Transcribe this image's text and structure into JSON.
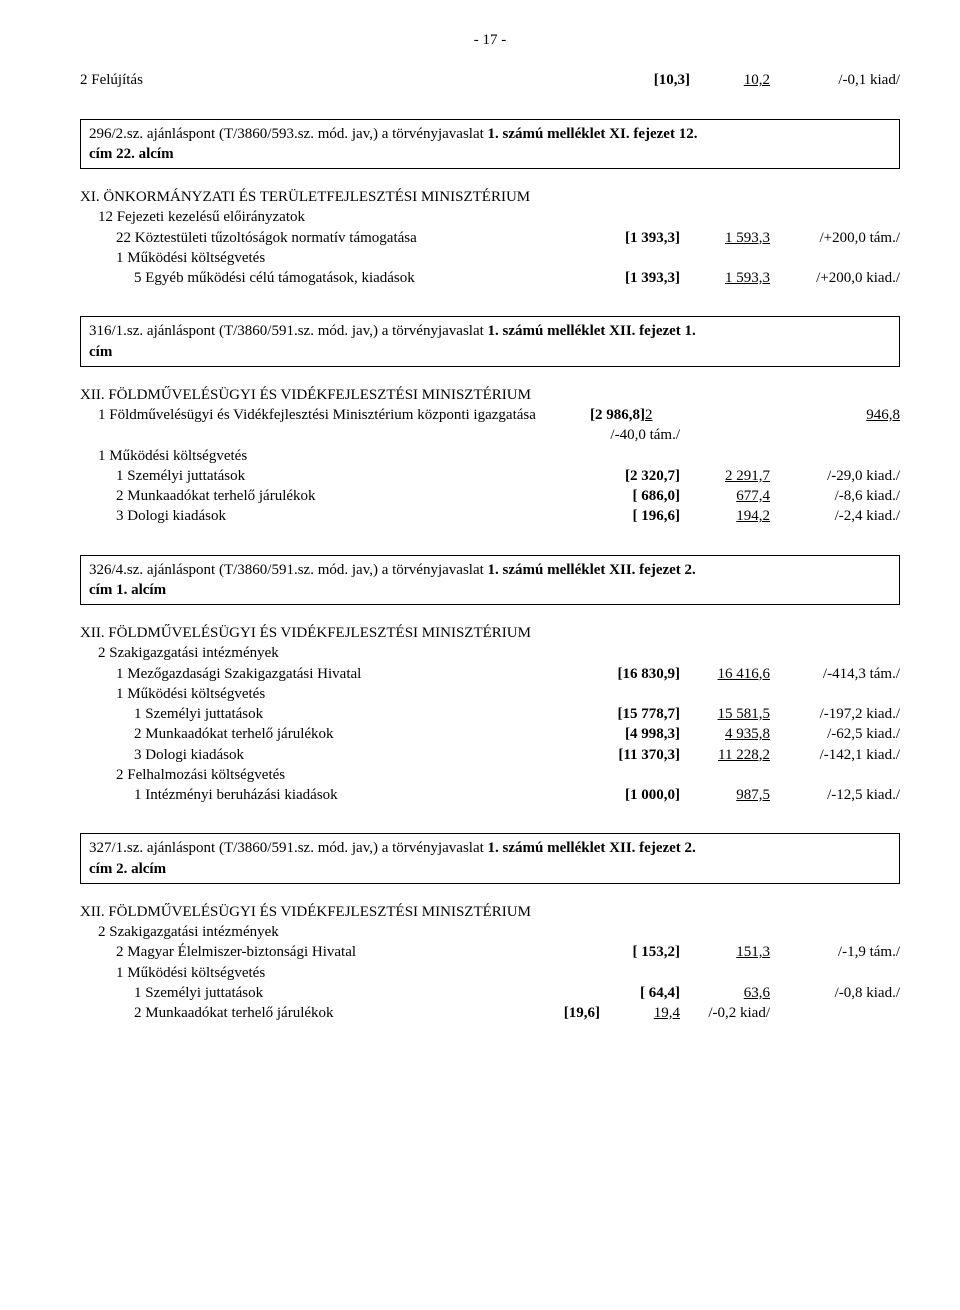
{
  "page_number": "- 17 -",
  "top_row": {
    "label": "2  Felújítás",
    "c1": "[10,3]",
    "c2": "10,2",
    "c3": "/-0,1 kiad/"
  },
  "box1": {
    "line1_plain": "296/2.sz. ajánláspont (T/3860/593.sz. mód. jav,) a törvényjavaslat ",
    "line1_bold": "1. számú melléklet XI. fejezet 12.",
    "line2_bold": "cím 22. alcím"
  },
  "sectXI": {
    "title": "XI. ÖNKORMÁNYZATI ÉS TERÜLETFEJLESZTÉSI MINISZTÉRIUM",
    "r1": "12 Fejezeti kezelésű előirányzatok",
    "r2": {
      "label": "22  Köztestületi tűzoltóságok normatív támogatása",
      "c1": "[1 393,3]",
      "c2": "1 593,3",
      "c3": "/+200,0 tám./"
    },
    "r3": "1  Működési költségvetés",
    "r4": {
      "label": "5  Egyéb működési célú támogatások, kiadások",
      "c1": "[1 393,3]",
      "c2": "1 593,3",
      "c3": "/+200,0 kiad./"
    }
  },
  "box2": {
    "line1_plain": "316/1.sz. ajánláspont (T/3860/591.sz. mód. jav,) a törvényjavaslat ",
    "line1_bold": "1. számú melléklet XII. fejezet 1.",
    "line2_bold": "cím"
  },
  "sectXII_1": {
    "title": "XII. FÖLDMŰVELÉSÜGYI ÉS VIDÉKFEJLESZTÉSI MINISZTÉRIUM",
    "r1": {
      "label": "1  Földművelésügyi és Vidékfejlesztési Minisztérium központi igazgatása",
      "c1": "[2 986,8]",
      "c1u": "2",
      "c3": "946,8"
    },
    "r2": {
      "c1": "/-40,0 tám./"
    },
    "r3": "1  Működési költségvetés",
    "r4": {
      "label": "1  Személyi juttatások",
      "c1": "[2 320,7]",
      "c2": "2 291,7",
      "c3": "/-29,0 kiad./"
    },
    "r5": {
      "label": "2  Munkaadókat terhelő járulékok",
      "c1": "[ 686,0]",
      "c2": "677,4",
      "c3": "/-8,6 kiad./"
    },
    "r6": {
      "label": "3  Dologi kiadások",
      "c1": "[ 196,6]",
      "c2": "194,2",
      "c3": "/-2,4 kiad./"
    }
  },
  "box3": {
    "line1_plain": "326/4.sz. ajánláspont (T/3860/591.sz. mód. jav,) a törvényjavaslat ",
    "line1_bold": "1. számú melléklet XII. fejezet 2.",
    "line2_bold": "cím 1. alcím"
  },
  "sectXII_2": {
    "title": "XII. FÖLDMŰVELÉSÜGYI ÉS VIDÉKFEJLESZTÉSI MINISZTÉRIUM",
    "r1": "2  Szakigazgatási intézmények",
    "r2": {
      "label": "1  Mezőgazdasági Szakigazgatási Hivatal",
      "c1": "[16 830,9]",
      "c2": "16 416,6",
      "c3": "/-414,3 tám./"
    },
    "r3": "1  Működési költségvetés",
    "r4": {
      "label": "1  Személyi juttatások",
      "c1": "[15 778,7]",
      "c2": "15 581,5",
      "c3": "/-197,2 kiad./"
    },
    "r5": {
      "label": "2  Munkaadókat terhelő járulékok",
      "c1": "[4 998,3]",
      "c2": "4 935,8",
      "c3": "/-62,5 kiad./"
    },
    "r6": {
      "label": "3  Dologi kiadások",
      "c1": "[11 370,3]",
      "c2": "11 228,2",
      "c3": "/-142,1 kiad./"
    },
    "r7": "2  Felhalmozási költségvetés",
    "r8": {
      "label": "1  Intézményi beruházási kiadások",
      "c1": "[1 000,0]",
      "c2": "987,5",
      "c3": "/-12,5 kiad./"
    }
  },
  "box4": {
    "line1_plain": "327/1.sz. ajánláspont (T/3860/591.sz. mód. jav,) a törvényjavaslat ",
    "line1_bold": "1. számú melléklet XII. fejezet 2.",
    "line2_bold": "cím 2. alcím"
  },
  "sectXII_3": {
    "title": "XII. FÖLDMŰVELÉSÜGYI ÉS VIDÉKFEJLESZTÉSI MINISZTÉRIUM",
    "r1": "2  Szakigazgatási intézmények",
    "r2": {
      "label": "2  Magyar Élelmiszer-biztonsági Hivatal",
      "c1": "[ 153,2]",
      "c2": "151,3",
      "c3": "/-1,9 tám./"
    },
    "r3": "1  Működési költségvetés",
    "r4": {
      "label": "1  Személyi juttatások",
      "c1": "[ 64,4]",
      "c2": "63,6",
      "c3": "/-0,8 kiad./"
    },
    "r5": {
      "label": "2  Munkaadókat terhelő járulékok",
      "c1": "[19,6]",
      "c1b": "19,4",
      "c2": "/-0,2 kiad/"
    }
  }
}
